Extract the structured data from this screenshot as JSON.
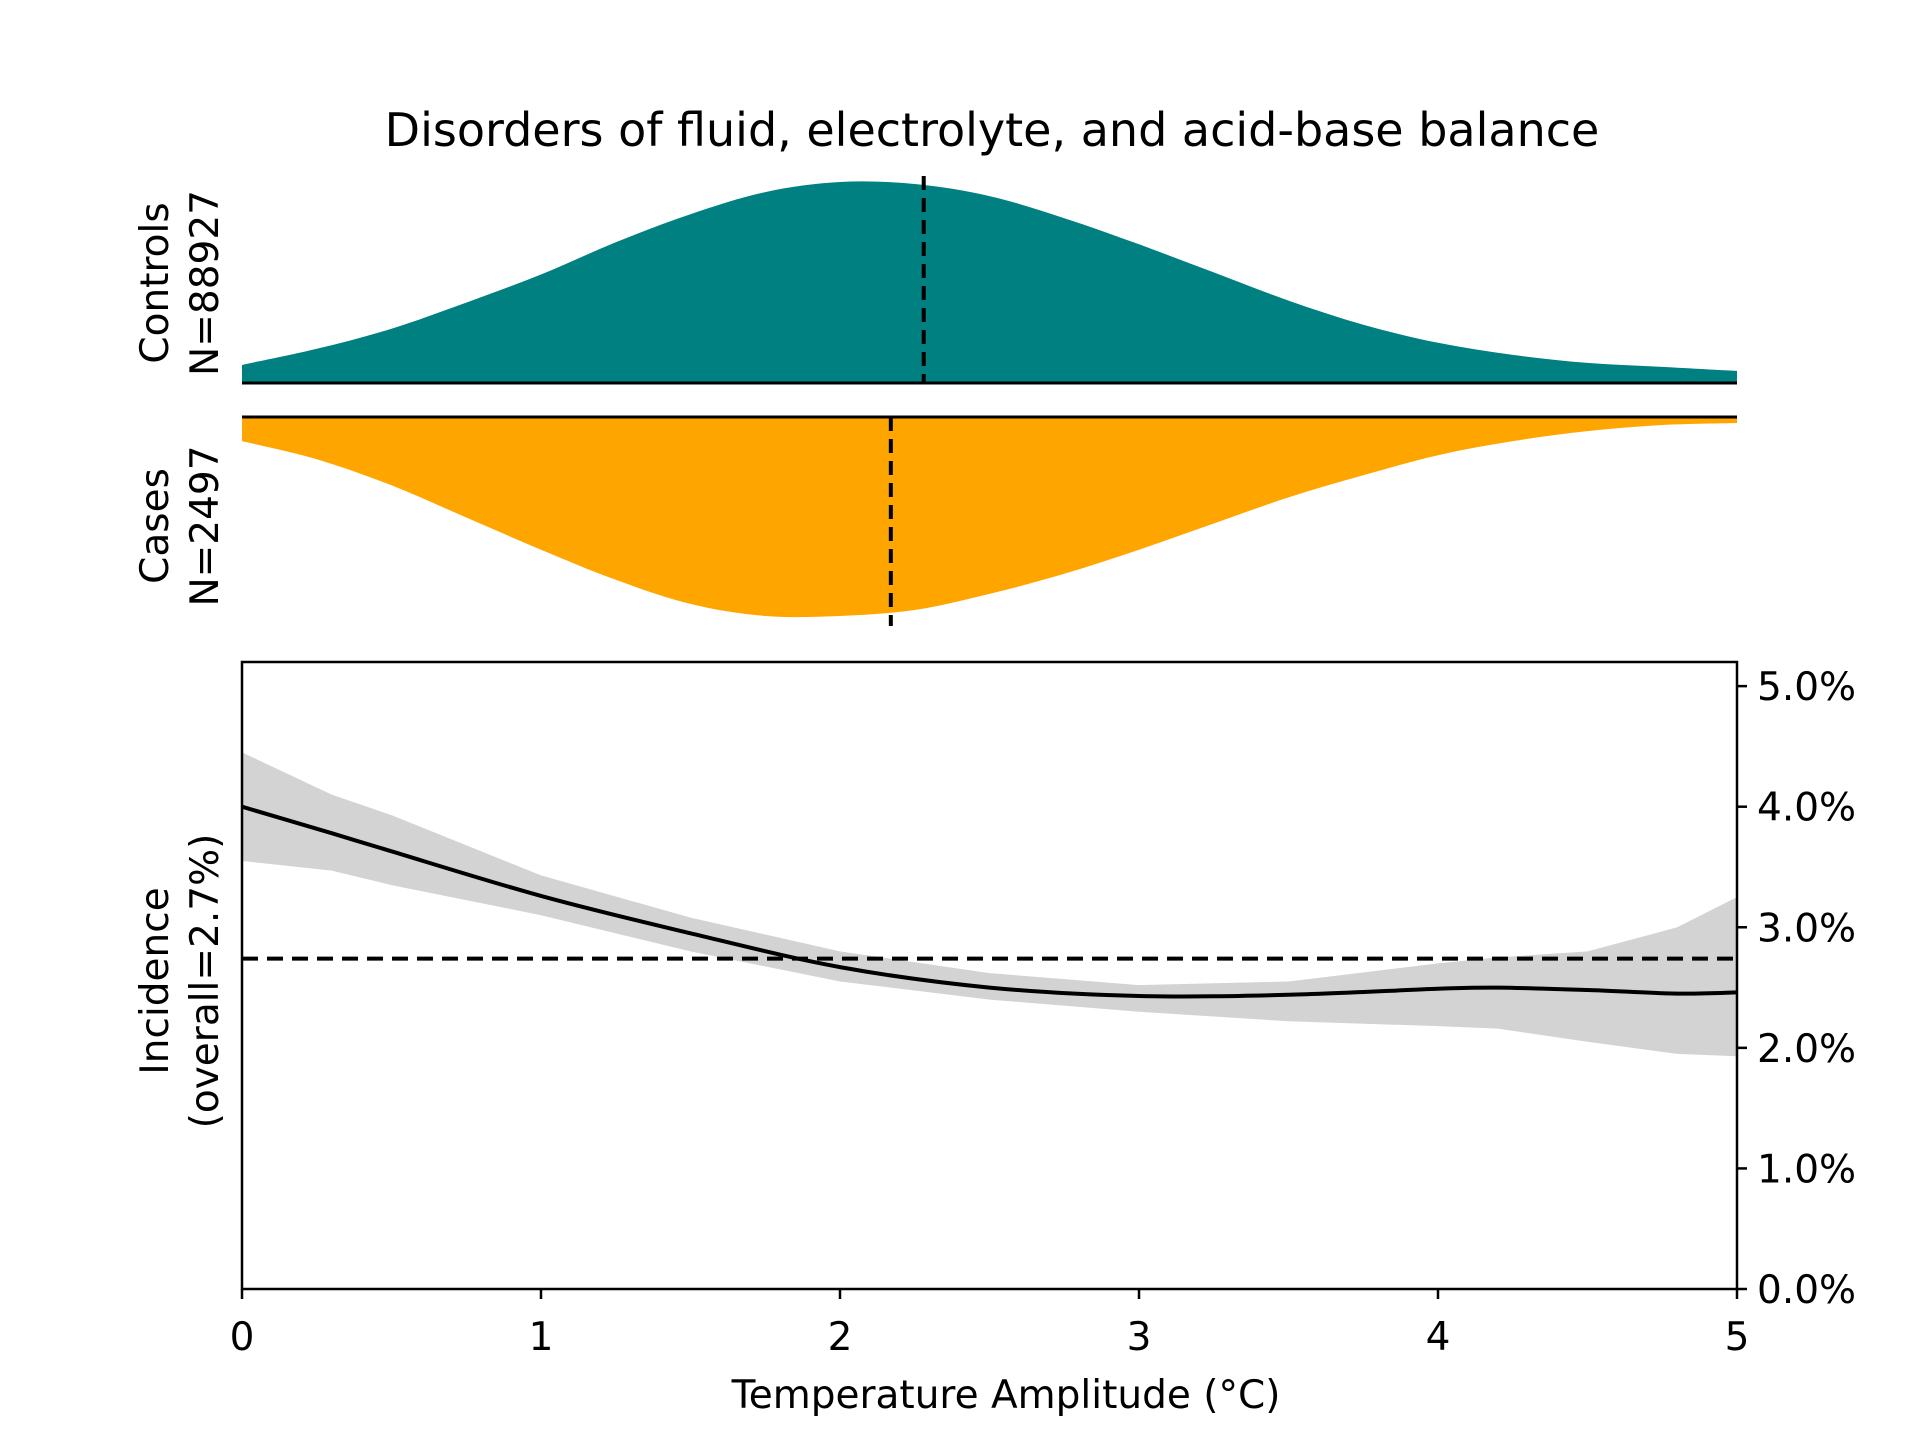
{
  "chart_data": {
    "type": "area",
    "title": "Disorders of fluid, electrolyte, and acid-base balance",
    "xlabel": "Temperature Amplitude (°C)",
    "xlim": [
      0,
      5
    ],
    "x_ticks": [
      "0",
      "1",
      "2",
      "3",
      "4",
      "5"
    ],
    "controls": {
      "label": "Controls",
      "n_label": "N=88927",
      "color": "#008080",
      "mean": 2.28,
      "density": {
        "x": [
          0,
          0.25,
          0.5,
          0.75,
          1.0,
          1.25,
          1.5,
          1.75,
          2.0,
          2.25,
          2.5,
          2.75,
          3.0,
          3.25,
          3.5,
          3.75,
          4.0,
          4.25,
          4.5,
          4.75,
          5.0
        ],
        "y": [
          0.09,
          0.17,
          0.27,
          0.4,
          0.54,
          0.7,
          0.84,
          0.95,
          1.0,
          0.99,
          0.93,
          0.82,
          0.69,
          0.55,
          0.41,
          0.29,
          0.2,
          0.14,
          0.1,
          0.08,
          0.06
        ]
      }
    },
    "cases": {
      "label": "Cases",
      "n_label": "N=2497",
      "color": "#ffa500",
      "mean": 2.17,
      "density": {
        "x": [
          0,
          0.25,
          0.5,
          0.75,
          1.0,
          1.25,
          1.5,
          1.75,
          2.0,
          2.25,
          2.5,
          2.75,
          3.0,
          3.25,
          3.5,
          3.75,
          4.0,
          4.25,
          4.5,
          4.75,
          5.0
        ],
        "y": [
          0.12,
          0.21,
          0.34,
          0.5,
          0.66,
          0.81,
          0.93,
          0.99,
          0.99,
          0.96,
          0.88,
          0.78,
          0.66,
          0.53,
          0.4,
          0.29,
          0.19,
          0.12,
          0.07,
          0.04,
          0.03
        ]
      }
    },
    "incidence": {
      "ylabel_line1": "Incidence",
      "ylabel_line2": "(overall=2.7%)",
      "ylim": [
        0,
        5.2
      ],
      "y_ticks": [
        {
          "value": 0,
          "label": "0.0%"
        },
        {
          "value": 1,
          "label": "1.0%"
        },
        {
          "value": 2,
          "label": "2.0%"
        },
        {
          "value": 3,
          "label": "3.0%"
        },
        {
          "value": 4,
          "label": "4.0%"
        },
        {
          "value": 5,
          "label": "5.0%"
        }
      ],
      "overall": 2.74,
      "band_color": "#d3d3d3",
      "x": [
        0,
        0.3,
        0.5,
        1.0,
        1.5,
        2.0,
        2.5,
        3.0,
        3.5,
        4.0,
        4.2,
        4.5,
        4.8,
        5.0
      ],
      "y": [
        4.0,
        3.78,
        3.63,
        3.26,
        2.95,
        2.67,
        2.5,
        2.43,
        2.44,
        2.49,
        2.5,
        2.48,
        2.45,
        2.46
      ],
      "lower": [
        3.55,
        3.47,
        3.35,
        3.1,
        2.8,
        2.55,
        2.4,
        2.3,
        2.22,
        2.18,
        2.16,
        2.05,
        1.95,
        1.93
      ],
      "upper": [
        4.45,
        4.1,
        3.93,
        3.43,
        3.08,
        2.8,
        2.62,
        2.52,
        2.55,
        2.7,
        2.75,
        2.8,
        3.0,
        3.25
      ]
    }
  }
}
